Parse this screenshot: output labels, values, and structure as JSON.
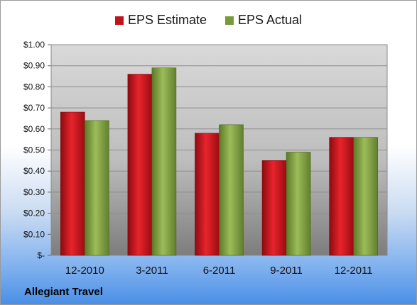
{
  "chart_data": {
    "type": "bar",
    "categories": [
      "12-2010",
      "3-2011",
      "6-2011",
      "9-2011",
      "12-2011"
    ],
    "series": [
      {
        "name": "EPS Estimate",
        "values": [
          0.68,
          0.86,
          0.58,
          0.45,
          0.56
        ],
        "color": "#c0141c"
      },
      {
        "name": "EPS Actual",
        "values": [
          0.64,
          0.89,
          0.62,
          0.49,
          0.56
        ],
        "color": "#7a9a3a"
      }
    ],
    "ylim": [
      0,
      1.0
    ],
    "yticks": [
      0,
      0.1,
      0.2,
      0.3,
      0.4,
      0.5,
      0.6,
      0.7,
      0.8,
      0.9,
      1.0
    ],
    "ytick_labels": [
      "$-",
      "$0.10",
      "$0.20",
      "$0.30",
      "$0.40",
      "$0.50",
      "$0.60",
      "$0.70",
      "$0.80",
      "$0.90",
      "$1.00"
    ],
    "grid": true,
    "legend_position": "top-center"
  },
  "caption": "Allegiant Travel"
}
